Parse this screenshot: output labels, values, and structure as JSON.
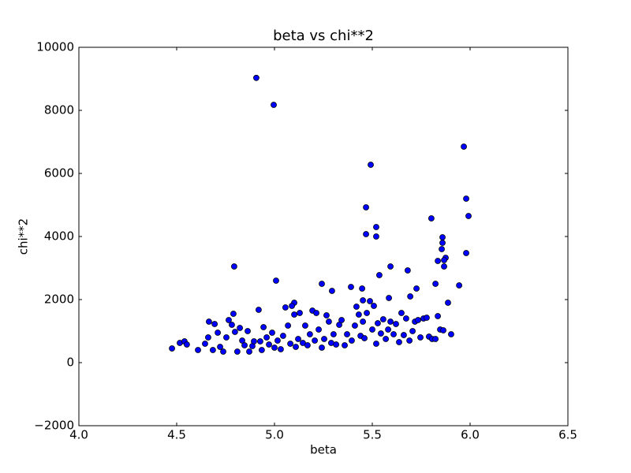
{
  "chart_data": {
    "type": "scatter",
    "title": "beta vs chi**2",
    "xlabel": "beta",
    "ylabel": "chi**2",
    "x": [
      4.907,
      4.996,
      5.492,
      5.968,
      5.98,
      5.992,
      5.468,
      5.802,
      5.52,
      5.468,
      5.52,
      5.859,
      5.859,
      5.855,
      5.875,
      5.867,
      5.835,
      5.98,
      5.867,
      4.794,
      5.593,
      5.681,
      5.536,
      5.008,
      5.242,
      5.944,
      5.823,
      5.391,
      5.448,
      5.726,
      5.294,
      5.694,
      5.585,
      5.887,
      5.101,
      5.452,
      4.476,
      4.516,
      4.54,
      4.552,
      4.609,
      4.645,
      4.661,
      4.665,
      4.694,
      4.685,
      4.71,
      4.722,
      4.738,
      4.754,
      4.766,
      4.782,
      4.79,
      4.798,
      4.81,
      4.823,
      4.835,
      4.847,
      4.863,
      4.871,
      4.887,
      4.895,
      4.919,
      4.927,
      4.935,
      4.944,
      4.96,
      4.972,
      4.988,
      5.0,
      5.016,
      5.032,
      5.044,
      5.056,
      5.069,
      5.081,
      5.089,
      5.101,
      5.109,
      5.121,
      5.129,
      5.145,
      5.157,
      5.169,
      5.181,
      5.194,
      5.206,
      5.214,
      5.226,
      5.242,
      5.254,
      5.266,
      5.278,
      5.29,
      5.302,
      5.315,
      5.331,
      5.343,
      5.359,
      5.371,
      5.395,
      5.411,
      5.419,
      5.431,
      5.44,
      5.452,
      5.46,
      5.472,
      5.488,
      5.5,
      5.508,
      5.52,
      5.528,
      5.544,
      5.556,
      5.569,
      5.581,
      5.593,
      5.609,
      5.621,
      5.637,
      5.649,
      5.661,
      5.673,
      5.69,
      5.706,
      5.718,
      5.734,
      5.746,
      5.762,
      5.778,
      5.79,
      5.806,
      5.823,
      5.835,
      5.847,
      5.863,
      5.903
    ],
    "values": [
      9030,
      8175,
      6275,
      6850,
      5200,
      4650,
      4925,
      4575,
      4300,
      4075,
      4000,
      3975,
      3800,
      3600,
      3325,
      3250,
      3225,
      3475,
      3050,
      3050,
      3050,
      2925,
      2775,
      2600,
      2500,
      2450,
      2500,
      2400,
      2350,
      2350,
      2275,
      2100,
      2050,
      1900,
      1900,
      1975,
      450,
      625,
      675,
      575,
      400,
      600,
      800,
      1300,
      1225,
      400,
      950,
      500,
      350,
      800,
      1350,
      1200,
      1550,
      975,
      350,
      1100,
      700,
      550,
      1000,
      350,
      525,
      675,
      1675,
      675,
      400,
      1125,
      800,
      575,
      950,
      475,
      700,
      425,
      850,
      1750,
      1175,
      600,
      1800,
      1525,
      500,
      750,
      1575,
      625,
      1175,
      550,
      900,
      1650,
      700,
      1575,
      1050,
      475,
      750,
      1500,
      1300,
      625,
      900,
      575,
      1200,
      1350,
      550,
      900,
      700,
      1175,
      1775,
      1525,
      850,
      1300,
      775,
      1575,
      1950,
      1050,
      1800,
      600,
      1250,
      925,
      1375,
      750,
      1050,
      1300,
      900,
      1225,
      650,
      1575,
      875,
      1400,
      700,
      1000,
      1300,
      1350,
      800,
      1400,
      1425,
      825,
      750,
      750,
      1475,
      1050,
      1025,
      900
    ],
    "color": "#0000ff",
    "edgecolor": "#000000",
    "xlim": [
      4.0,
      6.5
    ],
    "ylim": [
      -2000,
      10000
    ],
    "xticks": [
      {
        "value": 4.0,
        "label": "4.0"
      },
      {
        "value": 4.5,
        "label": "4.5"
      },
      {
        "value": 5.0,
        "label": "5.0"
      },
      {
        "value": 5.5,
        "label": "5.5"
      },
      {
        "value": 6.0,
        "label": "6.0"
      },
      {
        "value": 6.5,
        "label": "6.5"
      }
    ],
    "yticks": [
      {
        "value": -2000,
        "label": "−2000"
      },
      0,
      2000,
      4000,
      6000,
      8000,
      10000
    ],
    "grid": false
  }
}
